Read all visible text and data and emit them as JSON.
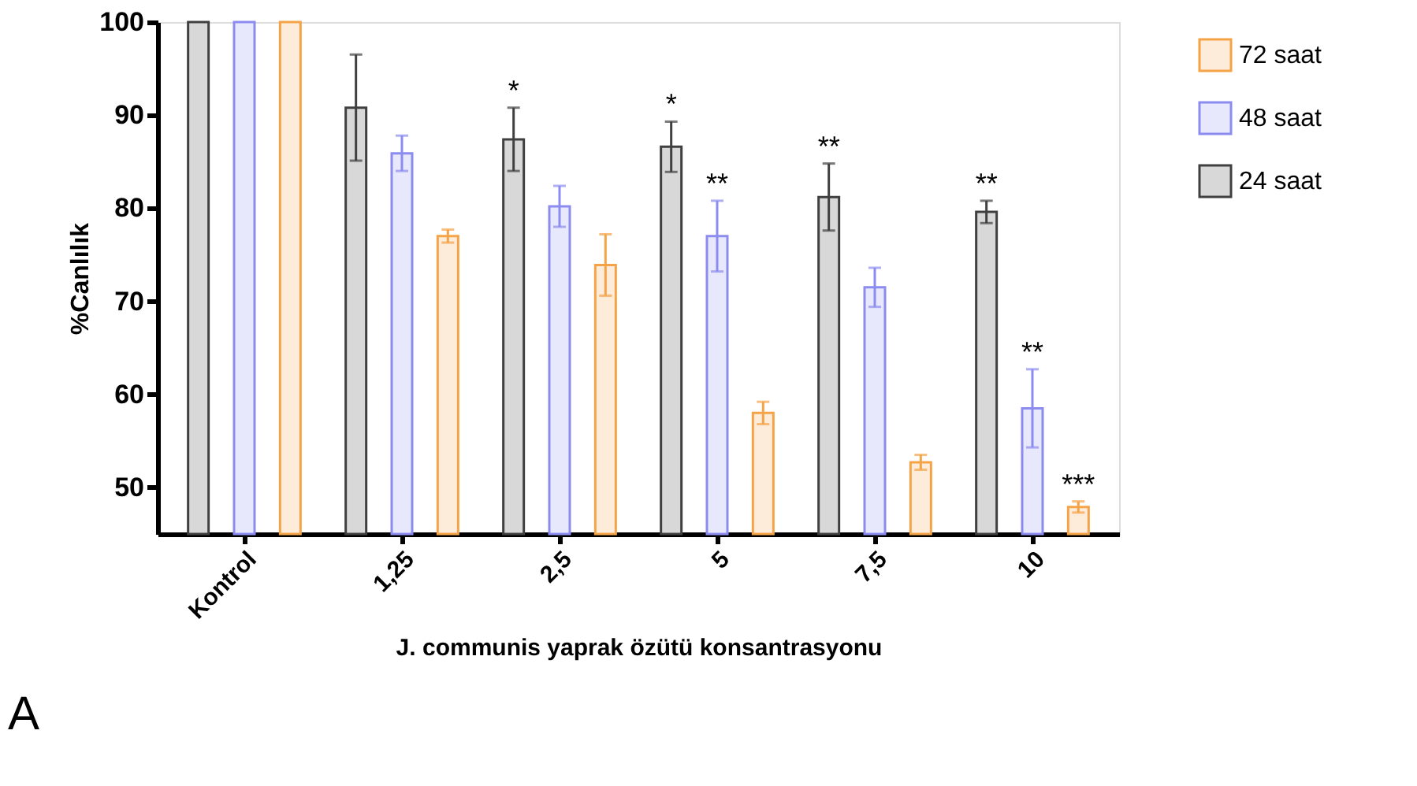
{
  "chart_data": {
    "type": "bar",
    "xlabel": "J. communis yaprak özütü konsantrasyonu",
    "ylabel": "%Canlılık",
    "categories": [
      "Kontrol",
      "1,25",
      "2,5",
      "5",
      "7,5",
      "10"
    ],
    "series": [
      {
        "name": "24 saat",
        "color": "#404040",
        "values": [
          100,
          90.8,
          87.4,
          86.6,
          81.2,
          79.6
        ],
        "errors": [
          null,
          5.7,
          3.4,
          2.7,
          3.6,
          1.2
        ],
        "value_labels": [
          null,
          null,
          "*",
          "*",
          "**",
          "**"
        ]
      },
      {
        "name": "48 saat",
        "color": "#8c8cf0",
        "values": [
          100,
          85.9,
          80.2,
          77.0,
          71.5,
          58.5
        ],
        "errors": [
          null,
          1.9,
          2.2,
          3.8,
          2.1,
          4.2
        ],
        "value_labels": [
          null,
          null,
          null,
          "**",
          null,
          "**"
        ]
      },
      {
        "name": "72 saat",
        "color": "#f5a347",
        "values": [
          100,
          77.0,
          73.9,
          58.0,
          52.7,
          47.9
        ],
        "errors": [
          null,
          0.7,
          3.3,
          1.2,
          0.8,
          0.6
        ],
        "value_labels": [
          null,
          null,
          null,
          null,
          null,
          "***"
        ]
      }
    ],
    "ylim": [
      45,
      100
    ],
    "yticks": [
      50,
      60,
      70,
      80,
      90,
      100
    ],
    "grid": false,
    "legend": "right",
    "annotations": [
      "A"
    ]
  }
}
